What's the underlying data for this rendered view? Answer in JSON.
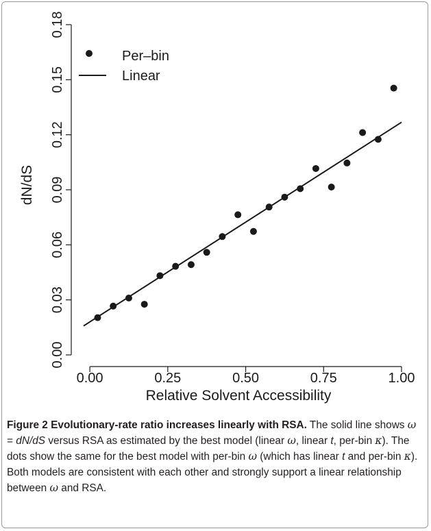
{
  "chart_data": {
    "type": "scatter",
    "xlabel": "Relative Solvent Accessibility",
    "ylabel": "dN/dS",
    "xlim": [
      -0.02,
      1.0
    ],
    "ylim": [
      0.0,
      0.18
    ],
    "xticks": [
      "0.00",
      "0.25",
      "0.50",
      "0.75",
      "1.00"
    ],
    "yticks": [
      "0.00",
      "0.03",
      "0.06",
      "0.09",
      "0.12",
      "0.15",
      "0.18"
    ],
    "grid": false,
    "legend": {
      "position": "top-left",
      "items": [
        "Per–bin",
        "Linear"
      ]
    },
    "series": [
      {
        "name": "Per–bin",
        "kind": "points",
        "x": [
          0.025,
          0.075,
          0.125,
          0.175,
          0.225,
          0.275,
          0.325,
          0.375,
          0.425,
          0.475,
          0.525,
          0.575,
          0.625,
          0.675,
          0.725,
          0.775,
          0.825,
          0.875,
          0.925,
          0.975
        ],
        "y": [
          0.0203,
          0.0266,
          0.031,
          0.0276,
          0.0432,
          0.0483,
          0.0492,
          0.0559,
          0.0645,
          0.0764,
          0.0673,
          0.0806,
          0.086,
          0.0906,
          0.1016,
          0.0915,
          0.1046,
          0.1212,
          0.1175,
          0.1454
        ]
      },
      {
        "name": "Linear",
        "kind": "line",
        "x": [
          -0.02,
          1.0
        ],
        "y": [
          0.0158,
          0.1268
        ]
      }
    ]
  },
  "caption": {
    "title": "Figure 2 Evolutionary-rate ratio increases linearly with RSA.",
    "text_1": " The solid line shows ",
    "math_omega": "ω",
    "math_eq": " = ",
    "math_dnds": "dN/dS",
    "text_2": " versus RSA as estimated by the best model (linear ",
    "text_3": ", linear ",
    "t": "t",
    "text_4": ", per-bin ",
    "kappa": "κ",
    "text_5": "). The dots show the same for the best model with per-bin ",
    "text_6": " (which has linear ",
    "text_7": " and per-bin ",
    "text_8": "). Both models are consistent with each other and strongly support a linear relationship between ",
    "text_9": " and RSA."
  }
}
